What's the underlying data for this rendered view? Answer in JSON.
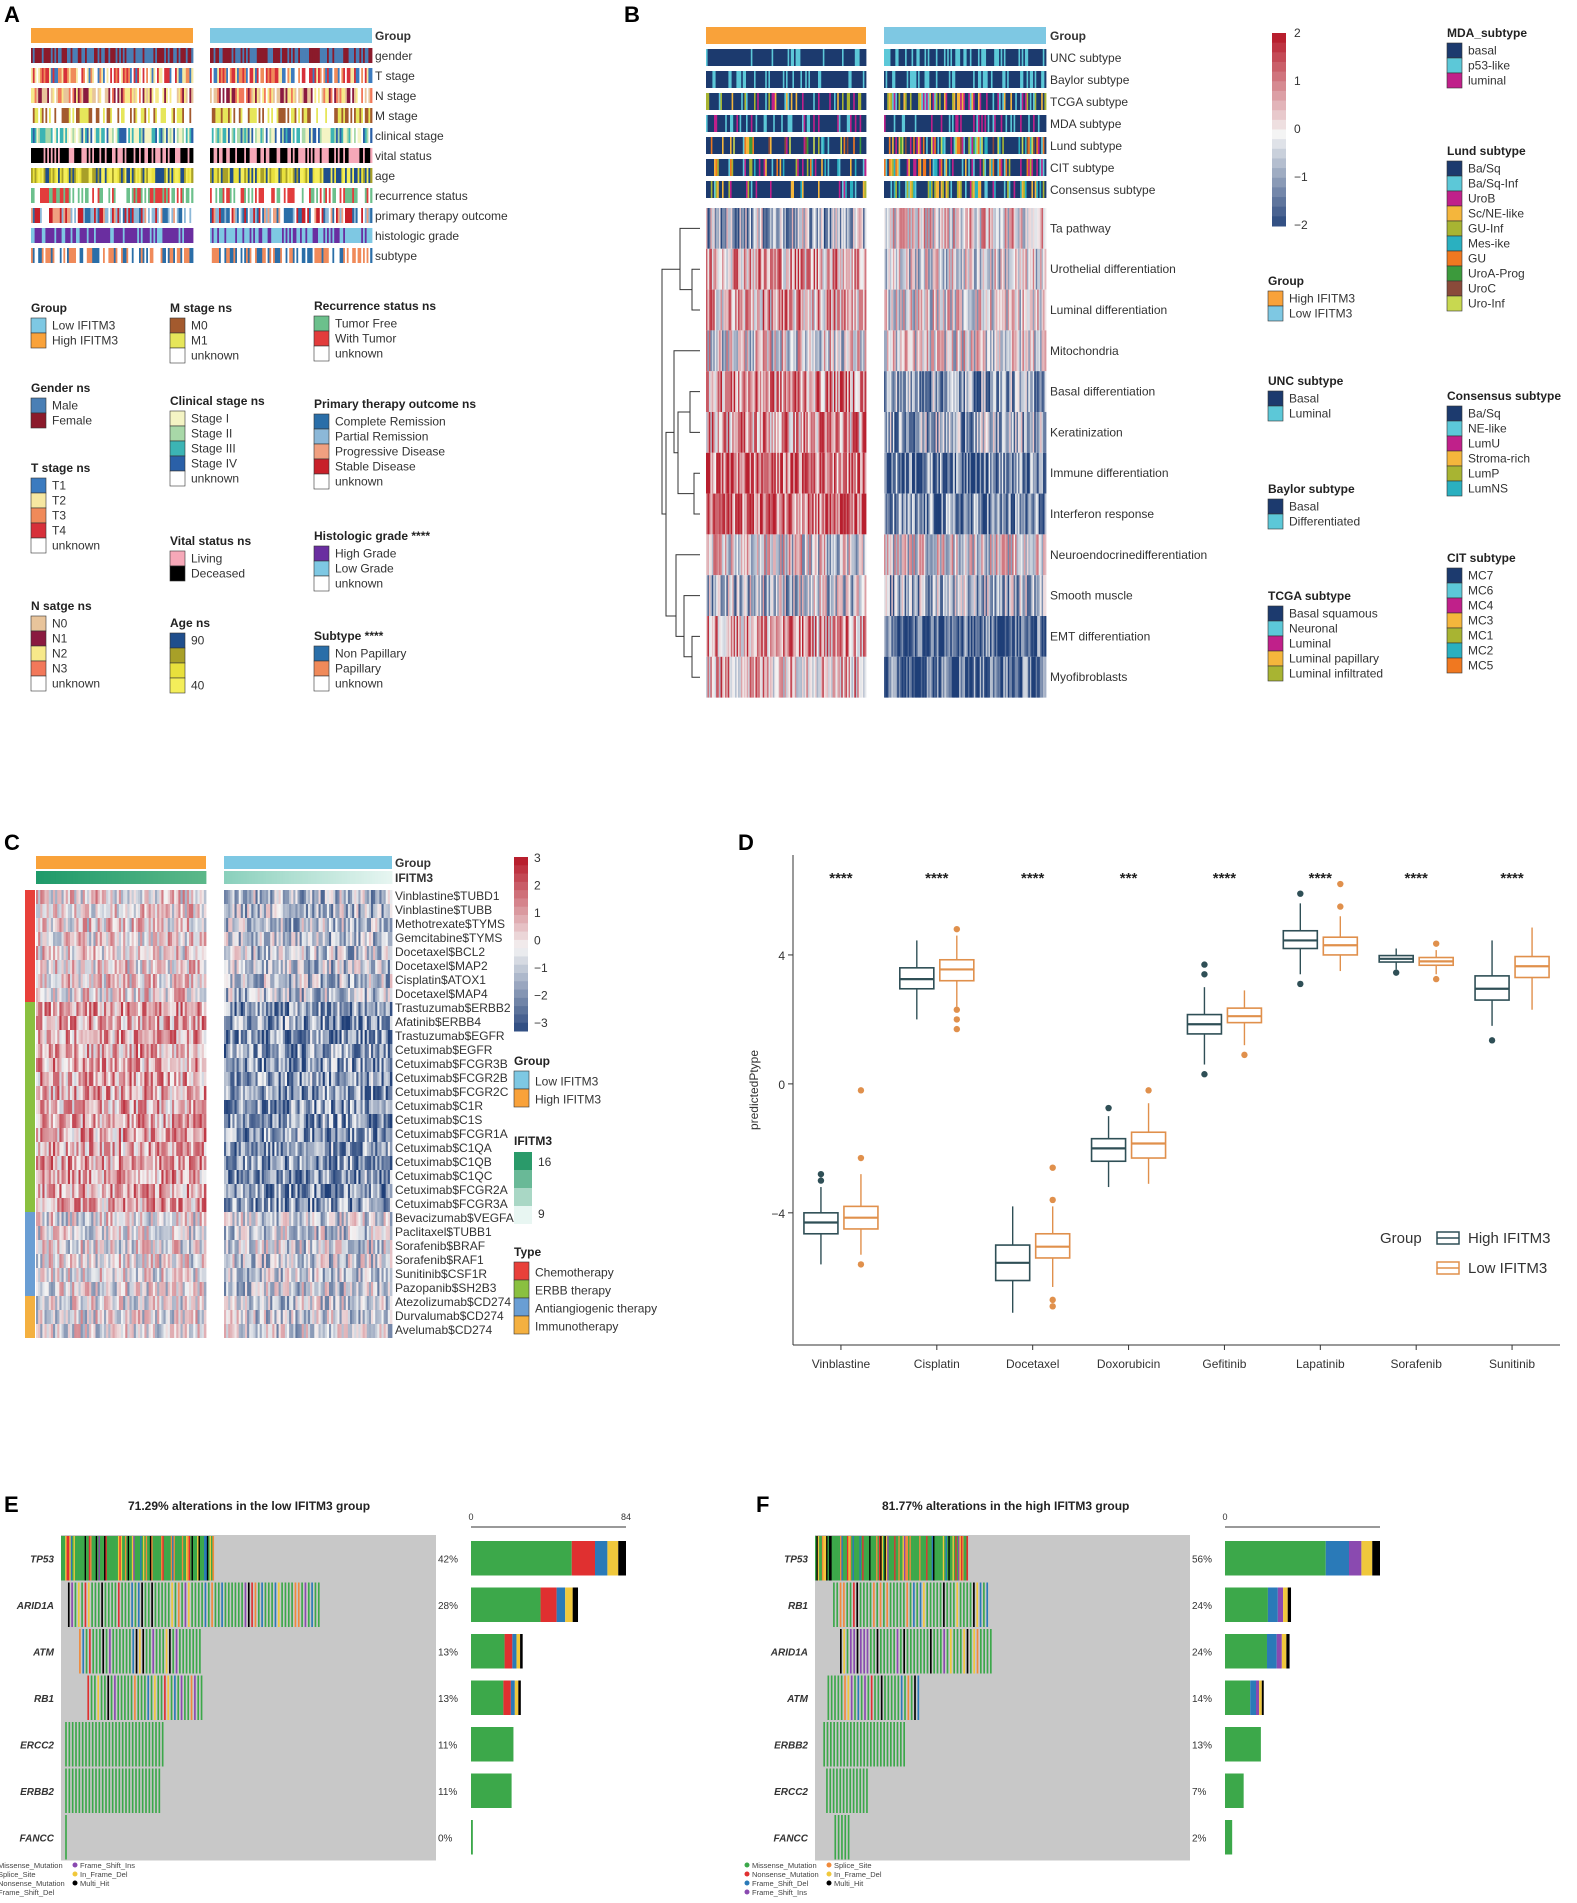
{
  "panel_labels": [
    "A",
    "B",
    "C",
    "D",
    "E",
    "F"
  ],
  "panelA": {
    "tracks": [
      "Group",
      "gender",
      "T stage",
      "N stage",
      "M stage",
      "clinical stage",
      "vital status",
      "age",
      "recurrence status",
      "primary therapy outcome",
      "histologic grade",
      "subtype"
    ],
    "legends": [
      {
        "title": "Group",
        "items": [
          {
            "label": "Low IFITM3",
            "color": "#7ec8e3"
          },
          {
            "label": "High IFITM3",
            "color": "#f9a23a"
          }
        ]
      },
      {
        "title": "Gender ns",
        "items": [
          {
            "label": "Male",
            "color": "#4a7fb5"
          },
          {
            "label": "Female",
            "color": "#8b1a2b"
          }
        ]
      },
      {
        "title": "T stage ns",
        "items": [
          {
            "label": "T1",
            "color": "#3c7bbf"
          },
          {
            "label": "T2",
            "color": "#f6e7a1"
          },
          {
            "label": "T3",
            "color": "#f08a5a"
          },
          {
            "label": "T4",
            "color": "#d7303a"
          },
          {
            "label": "unknown",
            "color": "#ffffff"
          }
        ]
      },
      {
        "title": "N satge ns",
        "items": [
          {
            "label": "N0",
            "color": "#e8c49b"
          },
          {
            "label": "N1",
            "color": "#8a1a40"
          },
          {
            "label": "N2",
            "color": "#f7e98a"
          },
          {
            "label": "N3",
            "color": "#f2785a"
          },
          {
            "label": "unknown",
            "color": "#ffffff"
          }
        ]
      },
      {
        "title": "M stage ns",
        "items": [
          {
            "label": "M0",
            "color": "#a35a2e"
          },
          {
            "label": "M1",
            "color": "#e6e65a"
          },
          {
            "label": "unknown",
            "color": "#ffffff"
          }
        ]
      },
      {
        "title": "Clinical stage ns",
        "items": [
          {
            "label": "Stage I",
            "color": "#f4f4c4"
          },
          {
            "label": "Stage II",
            "color": "#a8d8a8"
          },
          {
            "label": "Stage III",
            "color": "#3cb4b4"
          },
          {
            "label": "Stage IV",
            "color": "#2a60a8"
          },
          {
            "label": "unknown",
            "color": "#ffffff"
          }
        ]
      },
      {
        "title": "Vital status ns",
        "items": [
          {
            "label": "Living",
            "color": "#f6a8b8"
          },
          {
            "label": "Deceased",
            "color": "#000000"
          }
        ]
      },
      {
        "title": "Age ns",
        "items": [
          {
            "label": "90",
            "color": "#1f4e8c"
          },
          {
            "label": "",
            "color": "#a8a028"
          },
          {
            "label": "",
            "color": "#e8e03c"
          },
          {
            "label": "40",
            "color": "#f4ee5a"
          }
        ]
      },
      {
        "title": "Recurrence status ns",
        "items": [
          {
            "label": "Tumor Free",
            "color": "#6cc08c"
          },
          {
            "label": "With Tumor",
            "color": "#e23c3c"
          },
          {
            "label": "unknown",
            "color": "#ffffff"
          }
        ]
      },
      {
        "title": "Primary therapy outcome ns",
        "items": [
          {
            "label": "Complete Remission",
            "color": "#2a6ea8"
          },
          {
            "label": "Partial Remission",
            "color": "#8cb8d8"
          },
          {
            "label": "Progressive Disease",
            "color": "#f0a080"
          },
          {
            "label": "Stable Disease",
            "color": "#c8202a"
          },
          {
            "label": "unknown",
            "color": "#ffffff"
          }
        ]
      },
      {
        "title": "Histologic grade ****",
        "items": [
          {
            "label": "High Grade",
            "color": "#6a2ea0"
          },
          {
            "label": "Low Grade",
            "color": "#7ec8e3"
          },
          {
            "label": "unknown",
            "color": "#ffffff"
          }
        ]
      },
      {
        "title": "Subtype ****",
        "items": [
          {
            "label": "Non Papillary",
            "color": "#2a6ea8"
          },
          {
            "label": "Papillary",
            "color": "#f08a5a"
          },
          {
            "label": "unknown",
            "color": "#ffffff"
          }
        ]
      }
    ]
  },
  "panelB": {
    "tracks": [
      "Group",
      "UNC subtype",
      "Baylor subtype",
      "TCGA subtype",
      "MDA subtype",
      "Lund subtype",
      "CIT subtype",
      "Consensus subtype"
    ],
    "rows": [
      "Ta pathway",
      "Urothelial differentiation",
      "Luminal differentiation",
      "Mitochondria",
      "Basal differentiation",
      "Keratinization",
      "Immune differentiation",
      "Interferon response",
      "Neuroendocrinedifferentiation",
      "Smooth muscle",
      "EMT differentiation",
      "Myofibroblasts"
    ],
    "scale_ticks": [
      "2",
      "1",
      "0",
      "−1",
      "−2"
    ],
    "legends": [
      {
        "title": "Group",
        "items": [
          {
            "label": "High IFITM3",
            "color": "#f9a23a"
          },
          {
            "label": "Low IFITM3",
            "color": "#7ec8e3"
          }
        ]
      },
      {
        "title": "UNC subtype",
        "items": [
          {
            "label": "Basal",
            "color": "#1c3a6e"
          },
          {
            "label": "Luminal",
            "color": "#5cc8d8"
          }
        ]
      },
      {
        "title": "Baylor subtype",
        "items": [
          {
            "label": "Basal",
            "color": "#1c3a6e"
          },
          {
            "label": "Differentiated",
            "color": "#5cc8d8"
          }
        ]
      },
      {
        "title": "TCGA subtype",
        "items": [
          {
            "label": "Basal squamous",
            "color": "#1c3a6e"
          },
          {
            "label": "Neuronal",
            "color": "#5cc8d8"
          },
          {
            "label": "Luminal",
            "color": "#c0208a"
          },
          {
            "label": "Luminal papillary",
            "color": "#f4b63c"
          },
          {
            "label": "Luminal infiltrated",
            "color": "#a8b432"
          }
        ]
      },
      {
        "title": "MDA_subtype",
        "items": [
          {
            "label": "basal",
            "color": "#1c3a6e"
          },
          {
            "label": "p53-like",
            "color": "#5cc8d8"
          },
          {
            "label": "luminal",
            "color": "#c0208a"
          }
        ]
      },
      {
        "title": "Lund subtype",
        "items": [
          {
            "label": "Ba/Sq",
            "color": "#1c3a6e"
          },
          {
            "label": "Ba/Sq-Inf",
            "color": "#5cc8d8"
          },
          {
            "label": "UroB",
            "color": "#c0208a"
          },
          {
            "label": "Sc/NE-like",
            "color": "#f4b63c"
          },
          {
            "label": "GU-Inf",
            "color": "#a8b432"
          },
          {
            "label": "Mes-ike",
            "color": "#2ab0c0"
          },
          {
            "label": "GU",
            "color": "#f07820"
          },
          {
            "label": "UroA-Prog",
            "color": "#3c9a3c"
          },
          {
            "label": "UroC",
            "color": "#8a4a3a"
          },
          {
            "label": "Uro-Inf",
            "color": "#c8d850"
          }
        ]
      },
      {
        "title": "Consensus subtype",
        "items": [
          {
            "label": "Ba/Sq",
            "color": "#1c3a6e"
          },
          {
            "label": "NE-like",
            "color": "#5cc8d8"
          },
          {
            "label": "LumU",
            "color": "#c0208a"
          },
          {
            "label": "Stroma-rich",
            "color": "#f4b63c"
          },
          {
            "label": "LumP",
            "color": "#a8b432"
          },
          {
            "label": "LumNS",
            "color": "#2ab0c0"
          }
        ]
      },
      {
        "title": "CIT subtype",
        "items": [
          {
            "label": "MC7",
            "color": "#1c3a6e"
          },
          {
            "label": "MC6",
            "color": "#5cc8d8"
          },
          {
            "label": "MC4",
            "color": "#c0208a"
          },
          {
            "label": "MC3",
            "color": "#f4b63c"
          },
          {
            "label": "MC1",
            "color": "#a8b432"
          },
          {
            "label": "MC2",
            "color": "#2ab0c0"
          },
          {
            "label": "MC5",
            "color": "#f07820"
          }
        ]
      }
    ]
  },
  "panelC": {
    "tracks": [
      "Group",
      "IFITM3"
    ],
    "rows": [
      "Vinblastine$TUBD1",
      "Vinblastine$TUBB",
      "Methotrexate$TYMS",
      "Gemcitabine$TYMS",
      "Docetaxel$BCL2",
      "Docetaxel$MAP2",
      "Cisplatin$ATOX1",
      "Docetaxel$MAP4",
      "Trastuzumab$ERBB2",
      "Afatinib$ERBB4",
      "Trastuzumab$EGFR",
      "Cetuximab$EGFR",
      "Cetuximab$FCGR3B",
      "Cetuximab$FCGR2B",
      "Cetuximab$FCGR2C",
      "Cetuximab$C1R",
      "Cetuximab$C1S",
      "Cetuximab$FCGR1A",
      "Cetuximab$C1QA",
      "Cetuximab$C1QB",
      "Cetuximab$C1QC",
      "Cetuximab$FCGR2A",
      "Cetuximab$FCGR3A",
      "Bevacizumab$VEGFA",
      "Paclitaxel$TUBB1",
      "Sorafenib$BRAF",
      "Sorafenib$RAF1",
      "Sunitinib$CSF1R",
      "Pazopanib$SH2B3",
      "Atezolizumab$CD274",
      "Durvalumab$CD274",
      "Avelumab$CD274"
    ],
    "scale_ticks": [
      "3",
      "2",
      "1",
      "0",
      "−1",
      "−2",
      "−3"
    ],
    "ifitm3_ticks": [
      "16",
      "9"
    ],
    "legends": [
      {
        "title": "Group",
        "items": [
          {
            "label": "Low IFITM3",
            "color": "#7ec8e3"
          },
          {
            "label": "High IFITM3",
            "color": "#f9a23a"
          }
        ]
      },
      {
        "title": "Type",
        "items": [
          {
            "label": "Chemotherapy",
            "color": "#e8403a"
          },
          {
            "label": "ERBB therapy",
            "color": "#8ac040"
          },
          {
            "label": "Antiangiogenic therapy",
            "color": "#6a9ed4"
          },
          {
            "label": "Immunotherapy",
            "color": "#f4b040"
          }
        ]
      }
    ],
    "type_counts": [
      8,
      15,
      6,
      3
    ]
  },
  "chart_data": [
    {
      "type": "box",
      "title": "",
      "xlabel": "",
      "ylabel": "predictedPtype",
      "ylim": [
        -8.1,
        7.1
      ],
      "yticks": [
        "4",
        "0",
        "−4"
      ],
      "categories": [
        "Vinblastine",
        "Cisplatin",
        "Docetaxel",
        "Doxorubicin",
        "Gefitinib",
        "Lapatinib",
        "Sorafenib",
        "Sunitinib"
      ],
      "significance": [
        "****",
        "****",
        "****",
        "***",
        "****",
        "****",
        "****",
        "****"
      ],
      "legend_title": "Group",
      "series": [
        {
          "name": "High IFITM3",
          "color": "#2f4f56",
          "boxes": [
            {
              "min": -5.6,
              "q1": -4.65,
              "median": -4.3,
              "q3": -4.0,
              "max": -3.2,
              "outliers": [
                -2.8,
                -3.0
              ]
            },
            {
              "min": 2.0,
              "q1": 2.95,
              "median": 3.25,
              "q3": 3.6,
              "max": 4.45,
              "outliers": []
            },
            {
              "min": -7.1,
              "q1": -6.1,
              "median": -5.55,
              "q3": -5.0,
              "max": -3.8,
              "outliers": []
            },
            {
              "min": -3.2,
              "q1": -2.4,
              "median": -2.0,
              "q3": -1.7,
              "max": -1.0,
              "outliers": [
                -0.75
              ]
            },
            {
              "min": 0.6,
              "q1": 1.55,
              "median": 1.85,
              "q3": 2.15,
              "max": 3.0,
              "outliers": [
                0.3,
                3.4,
                3.7
              ]
            },
            {
              "min": 3.4,
              "q1": 4.2,
              "median": 4.45,
              "q3": 4.75,
              "max": 5.6,
              "outliers": [
                3.1,
                5.9
              ]
            },
            {
              "min": 3.55,
              "q1": 3.78,
              "median": 3.88,
              "q3": 3.98,
              "max": 4.2,
              "outliers": [
                3.45
              ]
            },
            {
              "min": 1.8,
              "q1": 2.6,
              "median": 2.95,
              "q3": 3.35,
              "max": 4.45,
              "outliers": [
                1.35
              ]
            }
          ]
        },
        {
          "name": "Low IFITM3",
          "color": "#e0904c",
          "boxes": [
            {
              "min": -5.3,
              "q1": -4.5,
              "median": -4.15,
              "q3": -3.8,
              "max": -2.8,
              "outliers": [
                -2.3,
                -0.2,
                -5.6
              ]
            },
            {
              "min": 2.4,
              "q1": 3.2,
              "median": 3.55,
              "q3": 3.85,
              "max": 4.6,
              "outliers": [
                4.8,
                2.0,
                1.7,
                2.3
              ]
            },
            {
              "min": -6.3,
              "q1": -5.4,
              "median": -5.05,
              "q3": -4.65,
              "max": -3.8,
              "outliers": [
                -2.6,
                -3.6,
                -6.7,
                -6.9
              ]
            },
            {
              "min": -3.1,
              "q1": -2.3,
              "median": -1.85,
              "q3": -1.5,
              "max": -0.6,
              "outliers": [
                -0.2
              ]
            },
            {
              "min": 1.2,
              "q1": 1.9,
              "median": 2.1,
              "q3": 2.35,
              "max": 2.9,
              "outliers": [
                0.9
              ]
            },
            {
              "min": 3.5,
              "q1": 4.0,
              "median": 4.3,
              "q3": 4.55,
              "max": 5.2,
              "outliers": [
                5.5,
                6.2
              ]
            },
            {
              "min": 3.4,
              "q1": 3.68,
              "median": 3.8,
              "q3": 3.92,
              "max": 4.15,
              "outliers": [
                3.25,
                4.35
              ]
            },
            {
              "min": 2.3,
              "q1": 3.3,
              "median": 3.65,
              "q3": 3.95,
              "max": 4.85,
              "outliers": []
            }
          ]
        }
      ]
    },
    {
      "type": "oncoplot",
      "title": "71.29% alterations in the low IFITM3 group",
      "genes": [
        "TP53",
        "ARID1A",
        "ATM",
        "RB1",
        "ERCC2",
        "ERBB2",
        "FANCC"
      ],
      "percents": [
        "42%",
        "28%",
        "13%",
        "13%",
        "11%",
        "11%",
        "0%"
      ],
      "counts": [
        84,
        58,
        28,
        27,
        23,
        22,
        1
      ],
      "x_axis_ticks": [
        "0",
        "84"
      ],
      "x_max": 84
    },
    {
      "type": "oncoplot",
      "title": "81.77% alterations in the high IFITM3 group",
      "genes": [
        "TP53",
        "RB1",
        "ARID1A",
        "ATM",
        "ERBB2",
        "ERCC2",
        "FANCC"
      ],
      "percents": [
        "56%",
        "24%",
        "24%",
        "14%",
        "13%",
        "7%",
        "2%"
      ],
      "counts": [
        108,
        46,
        45,
        27,
        25,
        13,
        5
      ],
      "x_axis_ticks": [
        "0"
      ],
      "x_max": 108
    }
  ],
  "mutation_legend": [
    {
      "label": "Missense_Mutation",
      "color": "#3ca84a"
    },
    {
      "label": "Frame_Shift_Ins",
      "color": "#8a4ab0"
    },
    {
      "label": "Splice_Site",
      "color": "#f08a3c"
    },
    {
      "label": "In_Frame_Del",
      "color": "#f0c83c"
    },
    {
      "label": "Nonsense_Mutation",
      "color": "#e03030"
    },
    {
      "label": "Multi_Hit",
      "color": "#000000"
    },
    {
      "label": "Frame_Shift_Del",
      "color": "#2a7ab8"
    }
  ],
  "mutation_legend_F": [
    {
      "label": "Missense_Mutation",
      "color": "#3ca84a"
    },
    {
      "label": "Splice_Site",
      "color": "#f08a3c"
    },
    {
      "label": "Nonsense_Mutation",
      "color": "#e03030"
    },
    {
      "label": "In_Frame_Del",
      "color": "#f0c83c"
    },
    {
      "label": "Frame_Shift_Del",
      "color": "#2a7ab8"
    },
    {
      "label": "Multi_Hit",
      "color": "#000000"
    },
    {
      "label": "Frame_Shift_Ins",
      "color": "#8a4ab0"
    }
  ]
}
